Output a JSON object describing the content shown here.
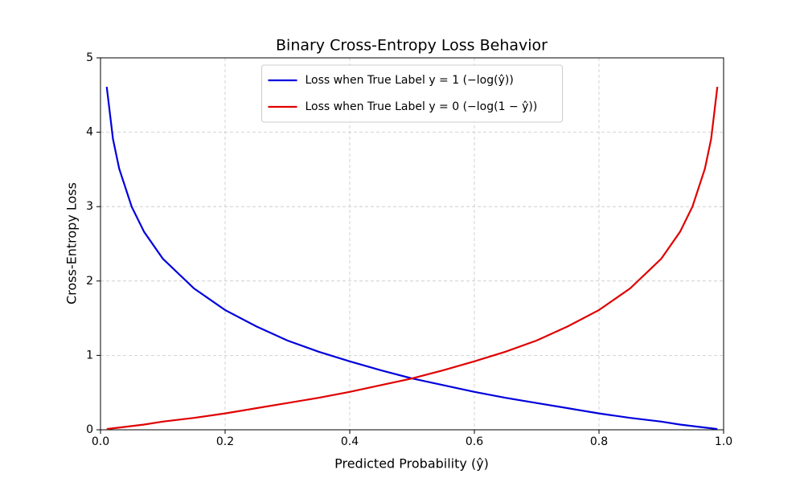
{
  "chart_data": {
    "type": "line",
    "title": "Binary Cross-Entropy Loss Behavior",
    "x_label": "Predicted Probability (ŷ)",
    "y_label": "Cross-Entropy Loss",
    "x": [
      0.01,
      0.02,
      0.03,
      0.05,
      0.07,
      0.1,
      0.15,
      0.2,
      0.25,
      0.3,
      0.35,
      0.4,
      0.45,
      0.5,
      0.55,
      0.6,
      0.65,
      0.7,
      0.75,
      0.8,
      0.85,
      0.9,
      0.93,
      0.95,
      0.97,
      0.98,
      0.99
    ],
    "series": [
      {
        "name": "Loss when True Label y = 1 (−log(ŷ))",
        "color": "#0000dd",
        "values": [
          4.61,
          3.91,
          3.51,
          3.0,
          2.66,
          2.3,
          1.9,
          1.61,
          1.39,
          1.2,
          1.05,
          0.92,
          0.8,
          0.69,
          0.6,
          0.51,
          0.43,
          0.36,
          0.29,
          0.22,
          0.16,
          0.11,
          0.07,
          0.05,
          0.03,
          0.02,
          0.01
        ]
      },
      {
        "name": "Loss when True Label y = 0 (−log(1 − ŷ))",
        "color": "#e00000",
        "values": [
          0.01,
          0.02,
          0.03,
          0.05,
          0.07,
          0.11,
          0.16,
          0.22,
          0.29,
          0.36,
          0.43,
          0.51,
          0.6,
          0.69,
          0.8,
          0.92,
          1.05,
          1.2,
          1.39,
          1.61,
          1.9,
          2.3,
          2.66,
          3.0,
          3.51,
          3.91,
          4.61
        ]
      }
    ],
    "xlim": [
      0,
      1
    ],
    "ylim": [
      0,
      5
    ],
    "xticks": [
      {
        "value": 0,
        "label": "0.0"
      },
      0.2,
      0.4,
      0.6,
      0.8,
      {
        "value": 1,
        "label": "1.0"
      }
    ],
    "yticks": [
      0,
      1,
      2,
      3,
      4,
      5
    ],
    "grid": true,
    "legend": "upper center"
  }
}
